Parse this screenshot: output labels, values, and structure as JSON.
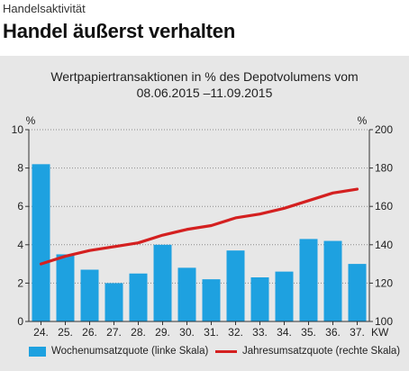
{
  "header": {
    "kicker": "Handelsaktivität",
    "headline": "Handel äußerst verhalten"
  },
  "colors": {
    "bar": "#1ea1e0",
    "line": "#d42020",
    "panel": "#e7e7e7"
  },
  "chart_data": {
    "type": "bar+line",
    "title_line1": "Wertpapiertransaktionen in % des Depotvolumens vom",
    "title_line2": "08.06.2015 –11.09.2015",
    "x_unit": "KW",
    "left_unit": "%",
    "right_unit": "%",
    "categories": [
      "24.",
      "25.",
      "26.",
      "27.",
      "28.",
      "29.",
      "30.",
      "31.",
      "32.",
      "33.",
      "34.",
      "35.",
      "36.",
      "37."
    ],
    "series": [
      {
        "name": "Wochenumsatzquote (linke Skala)",
        "type": "bar",
        "axis": "left",
        "values": [
          8.2,
          3.5,
          2.7,
          2.0,
          2.5,
          4.0,
          2.8,
          2.2,
          3.7,
          2.3,
          2.6,
          4.3,
          4.2,
          3.0
        ]
      },
      {
        "name": "Jahresumsatzquote (rechte Skala)",
        "type": "line",
        "axis": "right",
        "values": [
          130,
          134,
          137,
          139,
          141,
          145,
          148,
          150,
          154,
          156,
          159,
          163,
          167,
          169
        ]
      }
    ],
    "left_axis": {
      "min": 0,
      "max": 10,
      "ticks": [
        0,
        2,
        4,
        6,
        8,
        10
      ]
    },
    "right_axis": {
      "min": 100,
      "max": 200,
      "ticks": [
        100,
        120,
        140,
        160,
        180,
        200
      ]
    },
    "grid": "dotted-horizontal",
    "legend_position": "bottom"
  }
}
